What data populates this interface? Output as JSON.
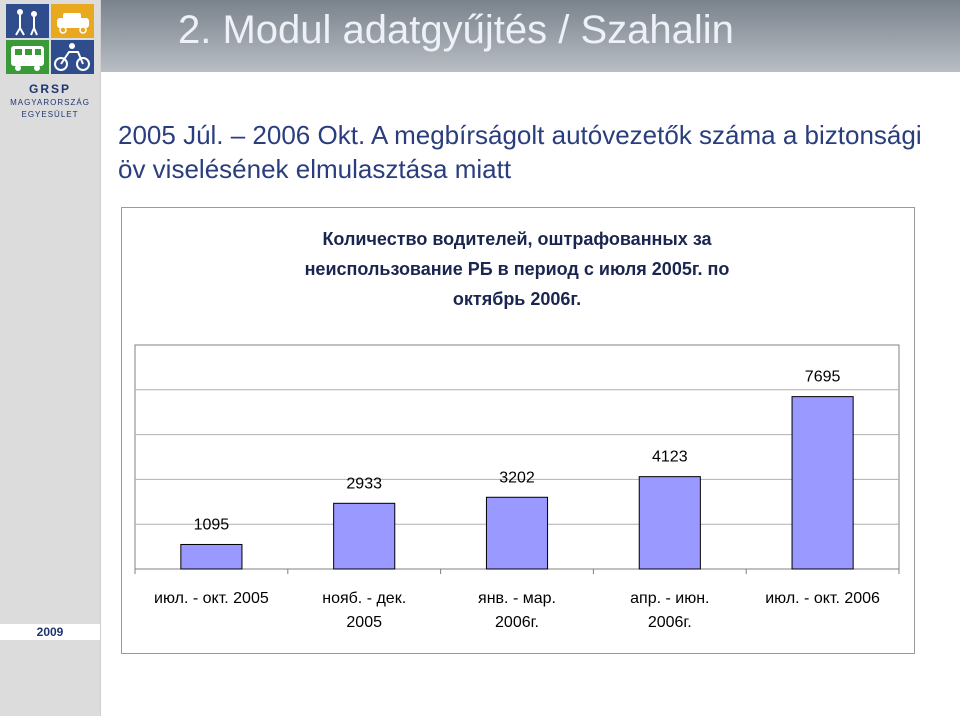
{
  "header": {
    "title": "2. Modul adatgyűjtés / Szahalin"
  },
  "sidebar": {
    "logo_name": "GRSP",
    "logo_org_line1": "MAGYARORSZÁG",
    "logo_org_line2": "EGYESÜLET",
    "year": "2009"
  },
  "subtitle": "2005 Júl. – 2006 Okt. A megbírságolt autóvezetők száma a biztonsági öv viselésének elmulasztása miatt",
  "chart_data": {
    "type": "bar",
    "title_lines": [
      "Количество водителей, оштрафованных за",
      "неиспользование РБ в период с июля 2005г. по",
      "октябрь 2006г."
    ],
    "categories": [
      "июл. - окт. 2005",
      "нояб. - дек. 2005",
      "янв. - мар. 2006г.",
      "апр. - июн. 2006г.",
      "июл. - окт. 2006"
    ],
    "category_lines": [
      [
        "июл. - окт. 2005"
      ],
      [
        "нояб. - дек.",
        "2005"
      ],
      [
        "янв. - мар.",
        "2006г."
      ],
      [
        "апр. - июн.",
        "2006г."
      ],
      [
        "июл. - окт. 2006"
      ]
    ],
    "values": [
      1095,
      2933,
      3202,
      4123,
      7695
    ],
    "ylim": [
      0,
      10000
    ],
    "grid": true,
    "legend": "none",
    "colors": {
      "bar": "#9999ff",
      "bar_border": "#000000",
      "plot_bg": "#ffffff",
      "grid": "#b0b0b0"
    }
  }
}
